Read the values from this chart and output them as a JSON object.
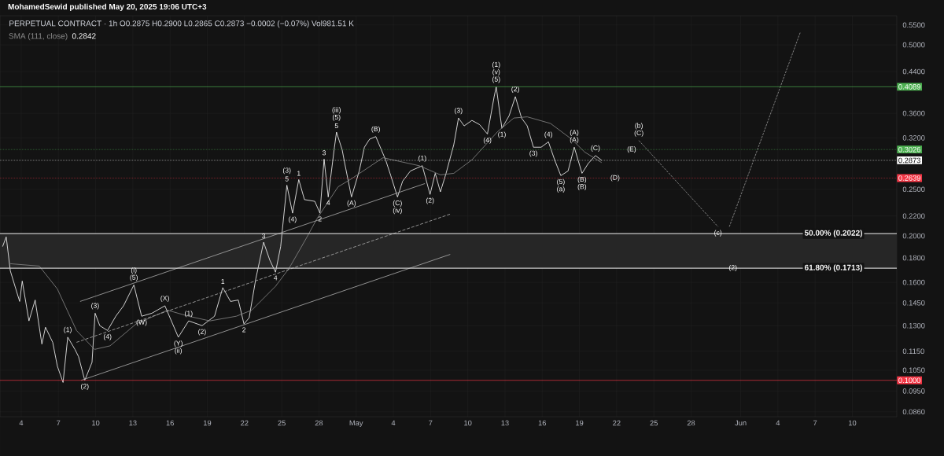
{
  "chart_data": {
    "type": "line",
    "title": "MohamedSewid published May 20, 2025 19:06 UTC+3",
    "subtitle": "PERPETUAL CONTRACT · 1h O0.2875 H0.2900 L0.2865 C0.2873 −0.0002 (−0.07%) Vol981.51 K",
    "xlim": [
      "2025-04-02T07:00",
      "2025-06-13T14:00"
    ],
    "ylim": [
      0.084,
      0.575
    ],
    "log": "y",
    "grid": true,
    "xticks": [
      {
        "value": "2025-04-04",
        "label": "4"
      },
      {
        "value": "2025-04-07",
        "label": "7"
      },
      {
        "value": "2025-04-10",
        "label": "10"
      },
      {
        "value": "2025-04-13",
        "label": "13"
      },
      {
        "value": "2025-04-16",
        "label": "16"
      },
      {
        "value": "2025-04-19",
        "label": "19"
      },
      {
        "value": "2025-04-22",
        "label": "22"
      },
      {
        "value": "2025-04-25",
        "label": "25"
      },
      {
        "value": "2025-04-28",
        "label": "28"
      },
      {
        "value": "2025-05-01",
        "label": "May"
      },
      {
        "value": "2025-05-04",
        "label": "4"
      },
      {
        "value": "2025-05-07",
        "label": "7"
      },
      {
        "value": "2025-05-10",
        "label": "10"
      },
      {
        "value": "2025-05-13",
        "label": "13"
      },
      {
        "value": "2025-05-16",
        "label": "16"
      },
      {
        "value": "2025-05-19",
        "label": "19"
      },
      {
        "value": "2025-05-22",
        "label": "22"
      },
      {
        "value": "2025-05-25",
        "label": "25"
      },
      {
        "value": "2025-05-28",
        "label": "28"
      },
      {
        "value": "2025-06-01",
        "label": "Jun"
      },
      {
        "value": "2025-06-04",
        "label": "4"
      },
      {
        "value": "2025-06-07",
        "label": "7"
      },
      {
        "value": "2025-06-10",
        "label": "10"
      }
    ],
    "yticks": [
      {
        "value": 0.55,
        "label": "0.5500"
      },
      {
        "value": 0.5,
        "label": "0.5000"
      },
      {
        "value": 0.44,
        "label": "0.4400"
      },
      {
        "value": 0.36,
        "label": "0.3600"
      },
      {
        "value": 0.32,
        "label": "0.3200"
      },
      {
        "value": 0.25,
        "label": "0.2500"
      },
      {
        "value": 0.22,
        "label": "0.2200"
      },
      {
        "value": 0.2,
        "label": "0.2000"
      },
      {
        "value": 0.18,
        "label": "0.1800"
      },
      {
        "value": 0.16,
        "label": "0.1600"
      },
      {
        "value": 0.145,
        "label": "0.1450"
      },
      {
        "value": 0.13,
        "label": "0.1300"
      },
      {
        "value": 0.115,
        "label": "0.1150"
      },
      {
        "value": 0.105,
        "label": "0.1050"
      },
      {
        "value": 0.095,
        "label": "0.0950"
      },
      {
        "value": 0.086,
        "label": "0.0860"
      }
    ],
    "series": [
      {
        "color": "#ffffff",
        "x": [
          "2025-04-02T12:00",
          "2025-04-02T19:00",
          "2025-04-03T03:00",
          "2025-04-03T21:00",
          "2025-04-04T02:00",
          "2025-04-04T15:00",
          "2025-04-05T03:00",
          "2025-04-05T16:00",
          "2025-04-05T23:00",
          "2025-04-06T13:00",
          "2025-04-06T22:00",
          "2025-04-07T09:00",
          "2025-04-07T18:00",
          "2025-04-08T08:00",
          "2025-04-08T15:00",
          "2025-04-09T03:00",
          "2025-04-09T17:00",
          "2025-04-09T23:00",
          "2025-04-10T08:00",
          "2025-04-10T23:00",
          "2025-04-11T15:00",
          "2025-04-12T06:00",
          "2025-04-13T02:00",
          "2025-04-13T17:00",
          "2025-04-14T13:00",
          "2025-04-15T14:00",
          "2025-04-16T16:00",
          "2025-04-17T12:00",
          "2025-04-18T14:00",
          "2025-04-19T14:00",
          "2025-04-20T06:00",
          "2025-04-20T21:00",
          "2025-04-21T12:00",
          "2025-04-21T23:00",
          "2025-04-22T09:00",
          "2025-04-22T22:00",
          "2025-04-23T13:00",
          "2025-04-24T01:00",
          "2025-04-24T12:00",
          "2025-04-24T22:00",
          "2025-04-25T10:00",
          "2025-04-25T21:00",
          "2025-04-26T09:00",
          "2025-04-26T20:00",
          "2025-04-27T16:00",
          "2025-04-28T02:00",
          "2025-04-28T10:00",
          "2025-04-28T18:00",
          "2025-04-29T06:00",
          "2025-04-29T10:00",
          "2025-04-29T21:00",
          "2025-04-30T02:00",
          "2025-04-30T15:00",
          "2025-05-01T06:00",
          "2025-05-01T16:00",
          "2025-05-02T02:00",
          "2025-05-02T14:00",
          "2025-05-03T09:00",
          "2025-05-03T19:00",
          "2025-05-04T08:00",
          "2025-05-04T18:00",
          "2025-05-05T09:00",
          "2025-05-06T08:00",
          "2025-05-06T23:00",
          "2025-05-07T09:00",
          "2025-05-07T19:00",
          "2025-05-08T06:00",
          "2025-05-08T21:00",
          "2025-05-09T06:00",
          "2025-05-09T17:00",
          "2025-05-10T08:00",
          "2025-05-10T23:00",
          "2025-05-11T14:00",
          "2025-05-12T03:00",
          "2025-05-12T07:00",
          "2025-05-12T18:00",
          "2025-05-13T08:00",
          "2025-05-13T20:00",
          "2025-05-14T08:00",
          "2025-05-14T19:00",
          "2025-05-15T07:00",
          "2025-05-15T22:00",
          "2025-05-16T12:00",
          "2025-05-17T00:00",
          "2025-05-17T12:00",
          "2025-05-18T02:00",
          "2025-05-18T14:00",
          "2025-05-19T05:00",
          "2025-05-19T17:00",
          "2025-05-20T07:00",
          "2025-05-20T19:00"
        ],
        "values": [
          0.19,
          0.199,
          0.169,
          0.146,
          0.161,
          0.133,
          0.147,
          0.119,
          0.129,
          0.12,
          0.107,
          0.099,
          0.123,
          0.116,
          0.112,
          0.1,
          0.109,
          0.138,
          0.13,
          0.127,
          0.136,
          0.143,
          0.158,
          0.136,
          0.138,
          0.143,
          0.123,
          0.133,
          0.13,
          0.136,
          0.156,
          0.146,
          0.147,
          0.131,
          0.135,
          0.163,
          0.194,
          0.178,
          0.168,
          0.19,
          0.255,
          0.223,
          0.262,
          0.238,
          0.236,
          0.223,
          0.289,
          0.241,
          0.306,
          0.329,
          0.302,
          0.283,
          0.241,
          0.273,
          0.306,
          0.318,
          0.322,
          0.288,
          0.267,
          0.241,
          0.26,
          0.273,
          0.28,
          0.244,
          0.27,
          0.247,
          0.27,
          0.31,
          0.352,
          0.339,
          0.348,
          0.341,
          0.326,
          0.39,
          0.4089,
          0.335,
          0.356,
          0.39,
          0.352,
          0.339,
          0.306,
          0.306,
          0.314,
          0.288,
          0.267,
          0.273,
          0.306,
          0.27,
          0.283,
          0.294,
          0.2873
        ]
      },
      {
        "name": "SMA (111, close)",
        "color": "#8a8a8a",
        "x": [
          "2025-04-03T03:00",
          "2025-04-05T11:00",
          "2025-04-06T22:00",
          "2025-04-08T11:00",
          "2025-04-09T22:00",
          "2025-04-11T04:00",
          "2025-04-13T06:00",
          "2025-04-15T19:00",
          "2025-04-17T12:00",
          "2025-04-19T05:00",
          "2025-04-21T08:00",
          "2025-04-22T14:00",
          "2025-04-24T12:00",
          "2025-04-25T14:00",
          "2025-04-27T01:00",
          "2025-04-27T20:00",
          "2025-04-29T13:00",
          "2025-04-30T15:00",
          "2025-05-03T04:00",
          "2025-05-04T11:00",
          "2025-05-06T02:00",
          "2025-05-07T19:00",
          "2025-05-08T21:00",
          "2025-05-10T08:00",
          "2025-05-12T10:00",
          "2025-05-13T17:00",
          "2025-05-14T19:00",
          "2025-05-16T16:00",
          "2025-05-18T09:00",
          "2025-05-19T10:00",
          "2025-05-20T19:00"
        ],
        "values": [
          0.175,
          0.173,
          0.155,
          0.127,
          0.116,
          0.118,
          0.131,
          0.14,
          0.136,
          0.133,
          0.136,
          0.14,
          0.157,
          0.171,
          0.199,
          0.217,
          0.253,
          0.263,
          0.291,
          0.286,
          0.28,
          0.268,
          0.27,
          0.288,
          0.33,
          0.352,
          0.354,
          0.343,
          0.318,
          0.299,
          0.2842
        ]
      },
      {
        "color": "#b0b0b0",
        "x": [
          "2025-04-08T18:00",
          "2025-05-06T13:00"
        ],
        "values": [
          0.146,
          0.257
        ]
      },
      {
        "color": "#b0b0b0",
        "line_style": "dashed",
        "x": [
          "2025-04-08T11:00",
          "2025-05-08T14:00"
        ],
        "values": [
          0.12,
          0.222
        ]
      },
      {
        "color": "#b0b0b0",
        "x": [
          "2025-04-08T20:00",
          "2025-05-08T14:00"
        ],
        "values": [
          0.1,
          0.183
        ]
      },
      {
        "color": "#9a9a9a",
        "line_style": "dotted",
        "x": [
          "2025-05-23T19:00",
          "2025-05-30T04:00"
        ],
        "values": [
          0.316,
          0.209
        ]
      },
      {
        "color": "#9a9a9a",
        "line_style": "dotted",
        "x": [
          "2025-05-31T02:00",
          "2025-06-05T19:00"
        ],
        "values": [
          0.209,
          0.53
        ]
      }
    ],
    "bands": [
      {
        "axis": "y",
        "from": 0.1713,
        "to": 0.2022,
        "color": "#262626"
      }
    ],
    "ref_lines": [
      {
        "axis": "y",
        "value": 0.4089,
        "label": "0.4089",
        "color": "#4caf50"
      },
      {
        "axis": "y",
        "value": 0.3026,
        "label": "0.3026",
        "color": "#4caf50",
        "line_style": "dotted"
      },
      {
        "axis": "y",
        "value": 0.2873,
        "label": "0.2873",
        "color": "#ffffff",
        "line_style": "dotted"
      },
      {
        "axis": "y",
        "value": 0.2639,
        "label": "0.2639",
        "color": "#f23645",
        "line_style": "dotted"
      },
      {
        "axis": "y",
        "value": 0.1,
        "label": "0.1000",
        "color": "#f23645"
      },
      {
        "axis": "y",
        "value": 0.2022,
        "label": "50.00% (0.2022)"
      },
      {
        "axis": "y",
        "value": 0.1713,
        "label": "61.80% (0.1713)"
      }
    ],
    "annotations": [
      "0.2842",
      {
        "text": "(1)",
        "x": "2025-04-07T18:00",
        "y": 0.123
      },
      {
        "text": "(2)",
        "x": "2025-04-09T03:00",
        "y": 0.1
      },
      {
        "text": "(3)",
        "x": "2025-04-09T23:00",
        "y": 0.138
      },
      {
        "text": "(4)",
        "x": "2025-04-10T23:00",
        "y": 0.127
      },
      {
        "text": "(i)",
        "x": "2025-04-13T02:00",
        "y": 0.158
      },
      {
        "text": "(5)",
        "x": "2025-04-13T02:00",
        "y": 0.158
      },
      {
        "text": "(W)",
        "x": "2025-04-13T17:00",
        "y": 0.136
      },
      {
        "text": "(X)",
        "x": "2025-04-15T14:00",
        "y": 0.143
      },
      {
        "text": "(Y)",
        "x": "2025-04-16T16:00",
        "y": 0.123
      },
      {
        "text": "(ii)",
        "x": "2025-04-16T16:00",
        "y": 0.123
      },
      {
        "text": "(1)",
        "x": "2025-04-17T12:00",
        "y": 0.133
      },
      {
        "text": "(2)",
        "x": "2025-04-18T14:00",
        "y": 0.13
      },
      {
        "text": "1",
        "x": "2025-04-20T06:00",
        "y": 0.156
      },
      {
        "text": "2",
        "x": "2025-04-21T23:00",
        "y": 0.131
      },
      {
        "text": "3",
        "x": "2025-04-23T13:00",
        "y": 0.194
      },
      {
        "text": "4",
        "x": "2025-04-24T12:00",
        "y": 0.168
      },
      {
        "text": "(3)",
        "x": "2025-04-25T10:00",
        "y": 0.255
      },
      {
        "text": "5",
        "x": "2025-04-25T10:00",
        "y": 0.255
      },
      {
        "text": "1",
        "x": "2025-04-26T09:00",
        "y": 0.262
      },
      {
        "text": "(4)",
        "x": "2025-04-25T21:00",
        "y": 0.223
      },
      {
        "text": "2",
        "x": "2025-04-28T02:00",
        "y": 0.223
      },
      {
        "text": "3",
        "x": "2025-04-28T10:00",
        "y": 0.289
      },
      {
        "text": "4",
        "x": "2025-04-28T18:00",
        "y": 0.241
      },
      {
        "text": "(iii)",
        "x": "2025-04-29T10:00",
        "y": 0.329
      },
      {
        "text": "(5)",
        "x": "2025-04-29T10:00",
        "y": 0.329
      },
      {
        "text": "5",
        "x": "2025-04-29T10:00",
        "y": 0.329
      },
      {
        "text": "(A)",
        "x": "2025-04-30T15:00",
        "y": 0.241
      },
      {
        "text": "(B)",
        "x": "2025-05-02T14:00",
        "y": 0.322
      },
      {
        "text": "(C)",
        "x": "2025-05-04T08:00",
        "y": 0.241
      },
      {
        "text": "(iv)",
        "x": "2025-05-04T08:00",
        "y": 0.241
      },
      {
        "text": "(1)",
        "x": "2025-05-06T08:00",
        "y": 0.28
      },
      {
        "text": "(2)",
        "x": "2025-05-06T23:00",
        "y": 0.244
      },
      {
        "text": "(3)",
        "x": "2025-05-09T06:00",
        "y": 0.352
      },
      {
        "text": "(4)",
        "x": "2025-05-11T14:00",
        "y": 0.326
      },
      {
        "text": "(1)",
        "x": "2025-05-12T07:00",
        "y": 0.4089
      },
      {
        "text": "(v)",
        "x": "2025-05-12T07:00",
        "y": 0.4089
      },
      {
        "text": "(5)",
        "x": "2025-05-12T07:00",
        "y": 0.4089
      },
      {
        "text": "(1)",
        "x": "2025-05-12T18:00",
        "y": 0.335
      },
      {
        "text": "(2)",
        "x": "2025-05-13T20:00",
        "y": 0.39
      },
      {
        "text": "(3)",
        "x": "2025-05-15T07:00",
        "y": 0.306
      },
      {
        "text": "(4)",
        "x": "2025-05-16T12:00",
        "y": 0.314
      },
      {
        "text": "(5)",
        "x": "2025-05-17T12:00",
        "y": 0.267
      },
      {
        "text": "(a)",
        "x": "2025-05-17T12:00",
        "y": 0.267
      },
      {
        "text": "(A)",
        "x": "2025-05-18T14:00",
        "y": 0.306
      },
      {
        "text": "(A)",
        "x": "2025-05-18T14:00",
        "y": 0.306
      },
      {
        "text": "(C)",
        "x": "2025-05-20T07:00",
        "y": 0.294
      },
      {
        "text": "(B)",
        "x": "2025-05-19T05:00",
        "y": 0.27
      },
      {
        "text": "(B)",
        "x": "2025-05-19T05:00",
        "y": 0.27
      },
      {
        "text": "(b)",
        "x": "2025-05-23T19:00",
        "y": 0.316
      },
      {
        "text": "(C)",
        "x": "2025-05-23T19:00",
        "y": 0.316
      },
      {
        "text": "(E)",
        "x": "2025-05-23T05:00",
        "y": 0.3026
      },
      {
        "text": "(D)",
        "x": "2025-05-21T21:00",
        "y": 0.2639
      },
      {
        "text": "(c)",
        "x": "2025-05-30T04:00",
        "y": 0.209
      },
      {
        "text": "(2)",
        "x": "2025-05-31T09:00",
        "y": 0.1713
      }
    ]
  }
}
